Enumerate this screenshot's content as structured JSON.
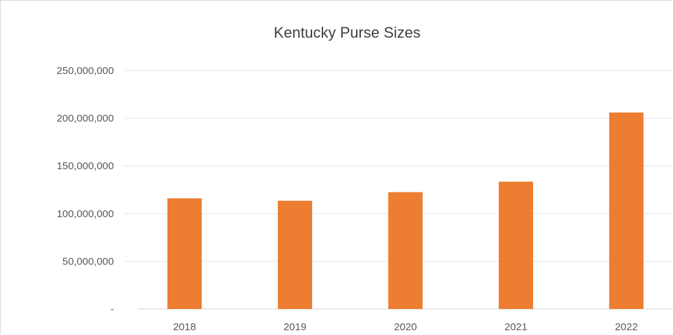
{
  "chart_data": {
    "type": "bar",
    "title": "Kentucky Purse Sizes",
    "xlabel": "",
    "ylabel": "",
    "categories": [
      "2018",
      "2019",
      "2020",
      "2021",
      "2022"
    ],
    "values": [
      116000000,
      113500000,
      122500000,
      133500000,
      206000000
    ],
    "ylim": [
      0,
      250000000
    ],
    "yticks": [
      0,
      50000000,
      100000000,
      150000000,
      200000000,
      250000000
    ],
    "ytick_labels": [
      "-",
      "50,000,000",
      "100,000,000",
      "150,000,000",
      "200,000,000",
      "250,000,000"
    ],
    "grid": true,
    "legend": "none",
    "bar_color": "#ED7D31"
  }
}
